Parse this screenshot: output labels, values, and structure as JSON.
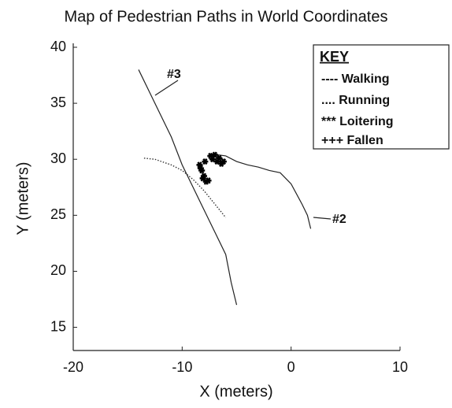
{
  "chart_data": {
    "type": "line",
    "title": "Map of Pedestrian Paths in World Coordinates",
    "x_label": "X (meters)",
    "y_label": "Y (meters)",
    "xlim": [
      -20,
      10
    ],
    "xticks": [
      -20,
      -10,
      0,
      10
    ],
    "ylim": [
      13,
      40
    ],
    "yticks": [
      15,
      20,
      25,
      30,
      35,
      40
    ],
    "series": [
      {
        "name": "#3",
        "color": "#222222",
        "style": "solid",
        "x": [
          -14,
          -13,
          -12,
          -11,
          -10,
          -9,
          -8,
          -7,
          -6,
          -5.5,
          -5
        ],
        "values": [
          38,
          36,
          34,
          32,
          29.5,
          27.5,
          25.5,
          23.5,
          21.5,
          19,
          17
        ]
      },
      {
        "color": "#333333",
        "style": "dotted",
        "x": [
          -13.5,
          -12.5,
          -11,
          -10,
          -9,
          -8,
          -7,
          -6
        ],
        "values": [
          30.1,
          30,
          29.5,
          29,
          28.2,
          27.2,
          26,
          24.8
        ]
      },
      {
        "name": "#2",
        "color": "#222222",
        "style": "solid",
        "x": [
          -7.5,
          -6,
          -5,
          -4,
          -3,
          -2,
          -1,
          0,
          1,
          1.5,
          1.8
        ],
        "values": [
          30.5,
          30.3,
          29.8,
          29.5,
          29.3,
          29,
          28.8,
          27.8,
          26,
          25,
          23.8
        ]
      },
      {
        "color": "#000000",
        "style": "star",
        "x": [
          -8.4,
          -8.2,
          -8,
          -7.8,
          -8.3,
          -8.1,
          -7.9,
          -7.6,
          -7.4,
          -7.2,
          -7,
          -6.8,
          -6.6,
          -6.4,
          -6.2
        ],
        "values": [
          29.5,
          29,
          28.5,
          28,
          29.2,
          28.3,
          29.8,
          28.1,
          30.3,
          30,
          30.4,
          29.8,
          30.1,
          29.6,
          29.8
        ]
      }
    ],
    "key": {
      "title": "KEY",
      "entries": [
        "---- Walking",
        ".... Running",
        "*** Loitering",
        "+++ Fallen"
      ]
    }
  }
}
